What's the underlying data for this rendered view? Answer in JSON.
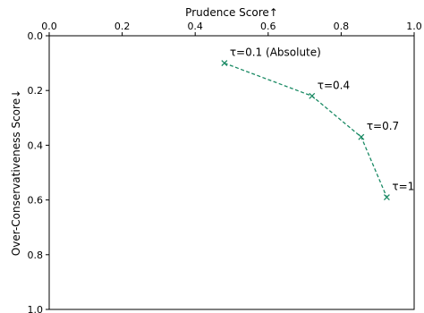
{
  "chart_data": {
    "type": "line",
    "xlabel": "Prudence Score↑",
    "ylabel": "Over-Conservativeness Score↓",
    "xlim": [
      0,
      1.0
    ],
    "ylim": [
      0,
      1.0
    ],
    "y_inverted": true,
    "x_axis_position": "top",
    "grid": false,
    "legend": "none",
    "x_ticks": [
      "0.0",
      "0.2",
      "0.4",
      "0.6",
      "0.8",
      "1.0"
    ],
    "y_ticks": [
      "0.0",
      "0.2",
      "0.4",
      "0.6",
      "0.8",
      "1.0"
    ],
    "series": [
      {
        "marker": "x",
        "line_style": "dashed",
        "color": "#1a8a64",
        "points": [
          {
            "x": 0.48,
            "y": 0.1,
            "label": "τ=0.1 (Absolute)"
          },
          {
            "x": 0.72,
            "y": 0.22,
            "label": "τ=0.4"
          },
          {
            "x": 0.855,
            "y": 0.37,
            "label": "τ=0.7"
          },
          {
            "x": 0.925,
            "y": 0.59,
            "label": "τ=1"
          }
        ]
      }
    ]
  }
}
